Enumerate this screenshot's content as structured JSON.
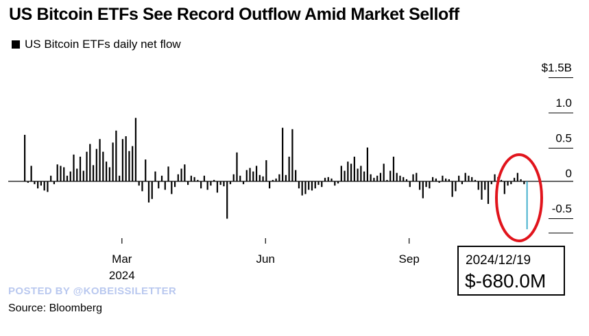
{
  "title": "US Bitcoin ETFs See Record Outflow Amid Market Selloff",
  "legend_label": "US Bitcoin ETFs daily net flow",
  "callout": {
    "date": "2024/12/19",
    "value": "$-680.0M"
  },
  "watermark": "POSTED BY @KOBEISSILETTER",
  "source": "Source: Bloomberg",
  "colors": {
    "bar": "#000000",
    "highlight": "#1a9ec2",
    "annotation": "#e1141c",
    "grid": "#000000"
  },
  "chart_data": {
    "type": "bar",
    "series_name": "US Bitcoin ETFs daily net flow",
    "unit": "$B",
    "ylim": [
      -0.8,
      1.5
    ],
    "yticks": [
      {
        "value": 1.5,
        "label": "$1.5B"
      },
      {
        "value": 1.0,
        "label": "1.0"
      },
      {
        "value": 0.5,
        "label": "0.5"
      },
      {
        "value": 0,
        "label": "0"
      },
      {
        "value": -0.5,
        "label": "-0.5"
      }
    ],
    "xticks": [
      {
        "index": 30,
        "label": "Mar",
        "sublabel": "2024"
      },
      {
        "index": 74,
        "label": "Jun",
        "sublabel": ""
      },
      {
        "index": 118,
        "label": "Sep",
        "sublabel": ""
      }
    ],
    "highlight_index": 154,
    "values": [
      0.66,
      -0.02,
      0.22,
      -0.04,
      -0.1,
      -0.06,
      -0.13,
      -0.15,
      0.08,
      -0.04,
      0.24,
      0.22,
      0.2,
      0.08,
      0.14,
      0.38,
      0.18,
      0.35,
      0.15,
      0.42,
      0.53,
      0.23,
      0.46,
      0.6,
      0.42,
      0.28,
      0.2,
      0.55,
      0.72,
      0.08,
      0.6,
      0.64,
      0.43,
      0.5,
      0.9,
      -0.06,
      -0.14,
      0.31,
      -0.3,
      -0.25,
      0.14,
      -0.1,
      0.08,
      -0.12,
      0.21,
      -0.18,
      -0.08,
      0.1,
      0.18,
      0.24,
      -0.05,
      0.08,
      0.06,
      0.02,
      -0.1,
      0.08,
      -0.12,
      -0.06,
      0.02,
      -0.16,
      -0.05,
      -0.07,
      -0.53,
      -0.04,
      0.1,
      0.41,
      0.08,
      -0.04,
      0.16,
      0.19,
      0.14,
      0.22,
      0.09,
      0.07,
      0.3,
      -0.1,
      0.02,
      0.04,
      0.1,
      0.76,
      0.09,
      0.35,
      0.74,
      0.16,
      -0.1,
      -0.2,
      -0.18,
      -0.12,
      -0.13,
      -0.1,
      -0.05,
      -0.08,
      0.05,
      0.06,
      0.04,
      -0.06,
      -0.03,
      0.22,
      0.15,
      0.28,
      0.25,
      0.35,
      0.18,
      0.22,
      0.14,
      0.48,
      0.1,
      0.05,
      0.08,
      0.12,
      0.25,
      0.02,
      0.15,
      0.35,
      0.12,
      0.08,
      0.06,
      0.03,
      -0.08,
      0.1,
      0.12,
      -0.12,
      -0.24,
      -0.08,
      -0.1,
      0.06,
      0.04,
      -0.02,
      0.08,
      0.04,
      0.03,
      -0.22,
      -0.14,
      0.08,
      -0.04,
      0.12,
      0.08,
      0.06,
      0.02,
      -0.12,
      -0.26,
      -0.12,
      -0.32,
      -0.04,
      0.1,
      0.06,
      0.02,
      -0.18,
      -0.06,
      -0.04,
      0.05,
      0.12,
      0.03,
      -0.04,
      -0.68
    ]
  }
}
